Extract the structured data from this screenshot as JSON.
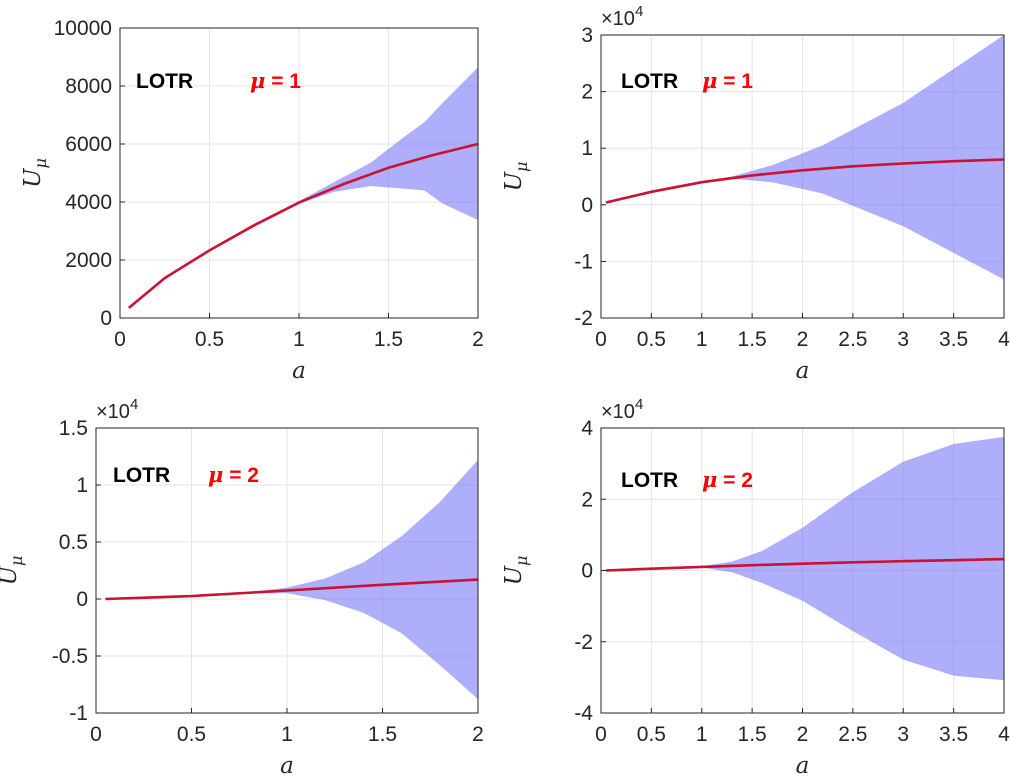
{
  "figure": {
    "mu_symbol": "μ",
    "eq_sign": " = ",
    "ylabel_main": "U",
    "ylabel_sub": "μ",
    "xlabel": "a",
    "exp_prefix": "×10",
    "colors": {
      "band": "#6b6bf5",
      "mean": "#cc1133",
      "dash": "#000000",
      "axes": "#262626",
      "grid": "#e6e6e6",
      "mu": "#ff0000"
    }
  },
  "chart_data": [
    {
      "type": "area",
      "annotation": {
        "label": "LOTR",
        "mu": "1"
      },
      "xlabel": "a",
      "ylabel": "Uμ",
      "xlim": [
        0,
        2
      ],
      "ylim": [
        0,
        10000
      ],
      "xticks": [
        "0",
        "0.5",
        "1",
        "1.5",
        "2"
      ],
      "xtick_values": [
        0,
        0.5,
        1,
        1.5,
        2
      ],
      "yticks": [
        "0",
        "2000",
        "4000",
        "6000",
        "8000",
        "10000"
      ],
      "ytick_values": [
        0,
        2000,
        4000,
        6000,
        8000,
        10000
      ],
      "exponent": "",
      "grid": true,
      "series": [
        {
          "role": "mean",
          "x": [
            0.05,
            0.25,
            0.5,
            0.75,
            1.0,
            1.25,
            1.5,
            1.75,
            2.0
          ],
          "y": [
            350,
            1380,
            2330,
            3200,
            3980,
            4620,
            5180,
            5620,
            6000
          ]
        },
        {
          "role": "band",
          "x": [
            0.05,
            0.25,
            0.5,
            0.75,
            1.0,
            1.2,
            1.4,
            1.6,
            1.7,
            1.8,
            2.0
          ],
          "upper": [
            350,
            1380,
            2330,
            3210,
            4030,
            4700,
            5350,
            6300,
            6750,
            7400,
            8650
          ],
          "lower": [
            350,
            1380,
            2330,
            3190,
            3950,
            4350,
            4550,
            4450,
            4400,
            3950,
            3380
          ]
        }
      ]
    },
    {
      "type": "area",
      "annotation": {
        "label": "LOTR",
        "mu": "1"
      },
      "xlabel": "a",
      "ylabel": "Uμ",
      "xlim": [
        0,
        4
      ],
      "ylim": [
        -2,
        3
      ],
      "xticks": [
        "0",
        "0.5",
        "1",
        "1.5",
        "2",
        "2.5",
        "3",
        "3.5",
        "4"
      ],
      "xtick_values": [
        0,
        0.5,
        1,
        1.5,
        2,
        2.5,
        3,
        3.5,
        4
      ],
      "yticks": [
        "-2",
        "-1",
        "0",
        "1",
        "2",
        "3"
      ],
      "ytick_values": [
        -2,
        -1,
        0,
        1,
        2,
        3
      ],
      "exponent": "4",
      "grid": true,
      "series": [
        {
          "role": "mean",
          "x": [
            0.05,
            0.5,
            1.0,
            1.5,
            2.0,
            2.5,
            3.0,
            3.5,
            4.0
          ],
          "y": [
            0.04,
            0.23,
            0.4,
            0.52,
            0.61,
            0.68,
            0.73,
            0.77,
            0.8
          ]
        },
        {
          "role": "band",
          "x": [
            0.05,
            0.5,
            1.0,
            1.3,
            1.7,
            2.2,
            3.0,
            3.5,
            4.0
          ],
          "upper": [
            0.04,
            0.23,
            0.41,
            0.5,
            0.7,
            1.05,
            1.8,
            2.4,
            3.0
          ],
          "lower": [
            0.04,
            0.23,
            0.39,
            0.46,
            0.4,
            0.2,
            -0.38,
            -0.85,
            -1.32
          ]
        }
      ]
    },
    {
      "type": "area",
      "annotation": {
        "label": "LOTR",
        "mu": "2"
      },
      "xlabel": "a",
      "ylabel": "Uμ",
      "xlim": [
        0,
        2
      ],
      "ylim": [
        -1,
        1.5
      ],
      "xticks": [
        "0",
        "0.5",
        "1",
        "1.5",
        "2"
      ],
      "xtick_values": [
        0,
        0.5,
        1,
        1.5,
        2
      ],
      "yticks": [
        "-1",
        "-0.5",
        "0",
        "0.5",
        "1",
        "1.5"
      ],
      "ytick_values": [
        -1,
        -0.5,
        0,
        0.5,
        1,
        1.5
      ],
      "exponent": "4",
      "grid": true,
      "series": [
        {
          "role": "mean",
          "x": [
            0.05,
            0.5,
            1.0,
            1.5,
            2.0
          ],
          "y": [
            0.0,
            0.025,
            0.075,
            0.125,
            0.17
          ]
        },
        {
          "role": "band",
          "x": [
            0.05,
            0.5,
            0.8,
            1.0,
            1.2,
            1.4,
            1.6,
            1.8,
            2.0
          ],
          "upper": [
            0.0,
            0.025,
            0.06,
            0.1,
            0.18,
            0.32,
            0.55,
            0.85,
            1.22
          ],
          "lower": [
            0.0,
            0.025,
            0.05,
            0.05,
            -0.01,
            -0.12,
            -0.3,
            -0.58,
            -0.88
          ]
        }
      ]
    },
    {
      "type": "area",
      "annotation": {
        "label": "LOTR",
        "mu": "2"
      },
      "xlabel": "a",
      "ylabel": "Uμ",
      "xlim": [
        0,
        4
      ],
      "ylim": [
        -4,
        4
      ],
      "xticks": [
        "0",
        "0.5",
        "1",
        "1.5",
        "2",
        "2.5",
        "3",
        "3.5",
        "4"
      ],
      "xtick_values": [
        0,
        0.5,
        1,
        1.5,
        2,
        2.5,
        3,
        3.5,
        4
      ],
      "yticks": [
        "-4",
        "-2",
        "0",
        "2",
        "4"
      ],
      "ytick_values": [
        -4,
        -2,
        0,
        2,
        4
      ],
      "exponent": "4",
      "grid": true,
      "series": [
        {
          "role": "mean",
          "x": [
            0.05,
            0.5,
            1.0,
            1.5,
            2.0,
            2.5,
            3.0,
            3.5,
            4.0
          ],
          "y": [
            0.0,
            0.05,
            0.1,
            0.15,
            0.19,
            0.23,
            0.26,
            0.29,
            0.32
          ]
        },
        {
          "role": "band",
          "x": [
            0.05,
            0.5,
            1.0,
            1.3,
            1.6,
            2.0,
            2.5,
            3.0,
            3.5,
            4.0
          ],
          "upper": [
            0.0,
            0.05,
            0.12,
            0.25,
            0.55,
            1.2,
            2.2,
            3.05,
            3.55,
            3.75
          ],
          "lower": [
            0.0,
            0.05,
            0.08,
            -0.05,
            -0.35,
            -0.85,
            -1.7,
            -2.5,
            -2.95,
            -3.08
          ]
        }
      ]
    }
  ]
}
